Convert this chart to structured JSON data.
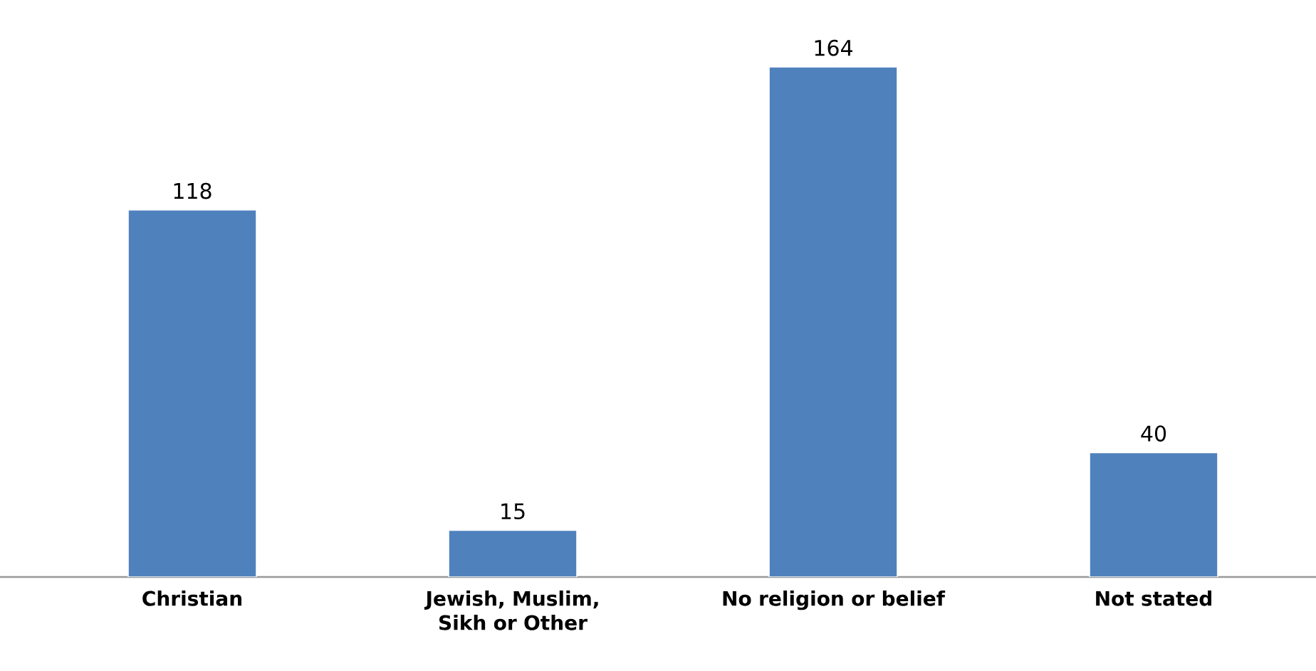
{
  "chart_data": {
    "type": "bar",
    "categories": [
      "Christian",
      "Jewish, Muslim, Sikh or Other",
      "No religion or belief",
      "Not stated"
    ],
    "values": [
      118,
      15,
      164,
      40
    ],
    "color": "#4f81bd",
    "data_labels": true
  }
}
